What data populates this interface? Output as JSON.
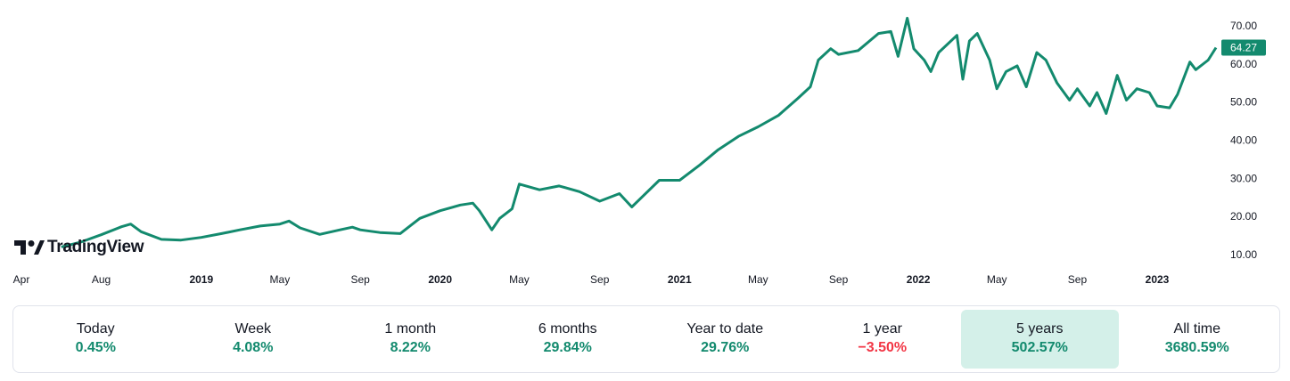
{
  "brand": {
    "logo_text": "TradingView"
  },
  "colors": {
    "line": "#138a6e",
    "positive": "#138a6e",
    "negative": "#f23645",
    "badge": "#138a6e",
    "active_bg": "#d4f0e9"
  },
  "chart_data": {
    "type": "line",
    "current_price_label": "64.27",
    "y_ticks": [
      "70.00",
      "60.00",
      "50.00",
      "40.00",
      "30.00",
      "20.00",
      "10.00"
    ],
    "ylim": [
      10,
      70
    ],
    "x_ticks": [
      {
        "label": "Apr",
        "date": "2018-04",
        "bold": false
      },
      {
        "label": "Aug",
        "date": "2018-08",
        "bold": false
      },
      {
        "label": "2019",
        "date": "2019-01",
        "bold": true
      },
      {
        "label": "May",
        "date": "2019-05",
        "bold": false
      },
      {
        "label": "Sep",
        "date": "2019-09",
        "bold": false
      },
      {
        "label": "2020",
        "date": "2020-01",
        "bold": true
      },
      {
        "label": "May",
        "date": "2020-05",
        "bold": false
      },
      {
        "label": "Sep",
        "date": "2020-09",
        "bold": false
      },
      {
        "label": "2021",
        "date": "2021-01",
        "bold": true
      },
      {
        "label": "May",
        "date": "2021-05",
        "bold": false
      },
      {
        "label": "Sep",
        "date": "2021-09",
        "bold": false
      },
      {
        "label": "2022",
        "date": "2022-01",
        "bold": true
      },
      {
        "label": "May",
        "date": "2022-05",
        "bold": false
      },
      {
        "label": "Sep",
        "date": "2022-09",
        "bold": false
      },
      {
        "label": "2023",
        "date": "2023-01",
        "bold": true
      }
    ],
    "grid": false,
    "series": [
      {
        "points": [
          [
            "2018-06",
            12.0
          ],
          [
            "2018-07",
            13.3
          ],
          [
            "2018-08",
            15.2
          ],
          [
            "2018-09",
            17.3
          ],
          [
            "2018-09-15",
            18.0
          ],
          [
            "2018-10",
            16.0
          ],
          [
            "2018-11",
            14.0
          ],
          [
            "2018-12",
            13.8
          ],
          [
            "2019-01",
            14.5
          ],
          [
            "2019-02",
            15.5
          ],
          [
            "2019-03",
            16.5
          ],
          [
            "2019-04",
            17.5
          ],
          [
            "2019-05",
            18.0
          ],
          [
            "2019-05-15",
            18.8
          ],
          [
            "2019-06",
            17.0
          ],
          [
            "2019-07",
            15.3
          ],
          [
            "2019-08",
            16.5
          ],
          [
            "2019-08-20",
            17.2
          ],
          [
            "2019-09",
            16.5
          ],
          [
            "2019-10",
            15.8
          ],
          [
            "2019-11",
            15.5
          ],
          [
            "2019-12",
            19.5
          ],
          [
            "2020-01",
            21.5
          ],
          [
            "2020-02",
            23.0
          ],
          [
            "2020-02-20",
            23.5
          ],
          [
            "2020-03",
            21.5
          ],
          [
            "2020-03-20",
            16.5
          ],
          [
            "2020-04",
            19.5
          ],
          [
            "2020-04-20",
            22.0
          ],
          [
            "2020-05",
            28.5
          ],
          [
            "2020-06",
            27.0
          ],
          [
            "2020-07",
            28.0
          ],
          [
            "2020-08",
            26.5
          ],
          [
            "2020-09",
            24.0
          ],
          [
            "2020-10",
            26.0
          ],
          [
            "2020-10-20",
            22.5
          ],
          [
            "2020-11",
            24.5
          ],
          [
            "2020-12",
            29.5
          ],
          [
            "2021-01",
            29.5
          ],
          [
            "2021-02",
            33.5
          ],
          [
            "2021-03",
            37.5
          ],
          [
            "2021-04",
            41.0
          ],
          [
            "2021-05",
            43.5
          ],
          [
            "2021-06",
            46.5
          ],
          [
            "2021-07",
            51.0
          ],
          [
            "2021-07-20",
            54.0
          ],
          [
            "2021-08",
            61.0
          ],
          [
            "2021-08-20",
            64.0
          ],
          [
            "2021-09",
            62.5
          ],
          [
            "2021-10",
            63.5
          ],
          [
            "2021-11",
            68.0
          ],
          [
            "2021-11-20",
            68.5
          ],
          [
            "2021-12",
            62.0
          ],
          [
            "2021-12-15",
            72.0
          ],
          [
            "2021-12-25",
            64.0
          ],
          [
            "2022-01-10",
            61.0
          ],
          [
            "2022-01-20",
            58.0
          ],
          [
            "2022-02",
            63.0
          ],
          [
            "2022-03",
            67.5
          ],
          [
            "2022-03-10",
            56.0
          ],
          [
            "2022-03-20",
            66.0
          ],
          [
            "2022-04",
            68.0
          ],
          [
            "2022-04-20",
            61.0
          ],
          [
            "2022-05",
            53.5
          ],
          [
            "2022-05-15",
            58.0
          ],
          [
            "2022-06",
            59.5
          ],
          [
            "2022-06-15",
            54.0
          ],
          [
            "2022-07",
            63.0
          ],
          [
            "2022-07-15",
            61.0
          ],
          [
            "2022-08",
            55.0
          ],
          [
            "2022-08-20",
            50.5
          ],
          [
            "2022-09",
            53.5
          ],
          [
            "2022-09-20",
            49.0
          ],
          [
            "2022-10",
            52.5
          ],
          [
            "2022-10-15",
            47.0
          ],
          [
            "2022-11",
            57.0
          ],
          [
            "2022-11-15",
            50.5
          ],
          [
            "2022-12",
            53.5
          ],
          [
            "2022-12-20",
            52.5
          ],
          [
            "2023-01",
            49.0
          ],
          [
            "2023-01-20",
            48.5
          ],
          [
            "2023-02",
            52.0
          ],
          [
            "2023-02-20",
            60.5
          ],
          [
            "2023-03",
            58.5
          ],
          [
            "2023-03-20",
            61.0
          ],
          [
            "2023-04",
            64.27
          ]
        ]
      }
    ]
  },
  "performance": [
    {
      "label": "Today",
      "value": "0.45%",
      "sign": "positive",
      "active": false
    },
    {
      "label": "Week",
      "value": "4.08%",
      "sign": "positive",
      "active": false
    },
    {
      "label": "1 month",
      "value": "8.22%",
      "sign": "positive",
      "active": false
    },
    {
      "label": "6 months",
      "value": "29.84%",
      "sign": "positive",
      "active": false
    },
    {
      "label": "Year to date",
      "value": "29.76%",
      "sign": "positive",
      "active": false
    },
    {
      "label": "1 year",
      "value": "−3.50%",
      "sign": "negative",
      "active": false
    },
    {
      "label": "5 years",
      "value": "502.57%",
      "sign": "positive",
      "active": true
    },
    {
      "label": "All time",
      "value": "3680.59%",
      "sign": "positive",
      "active": false
    }
  ]
}
